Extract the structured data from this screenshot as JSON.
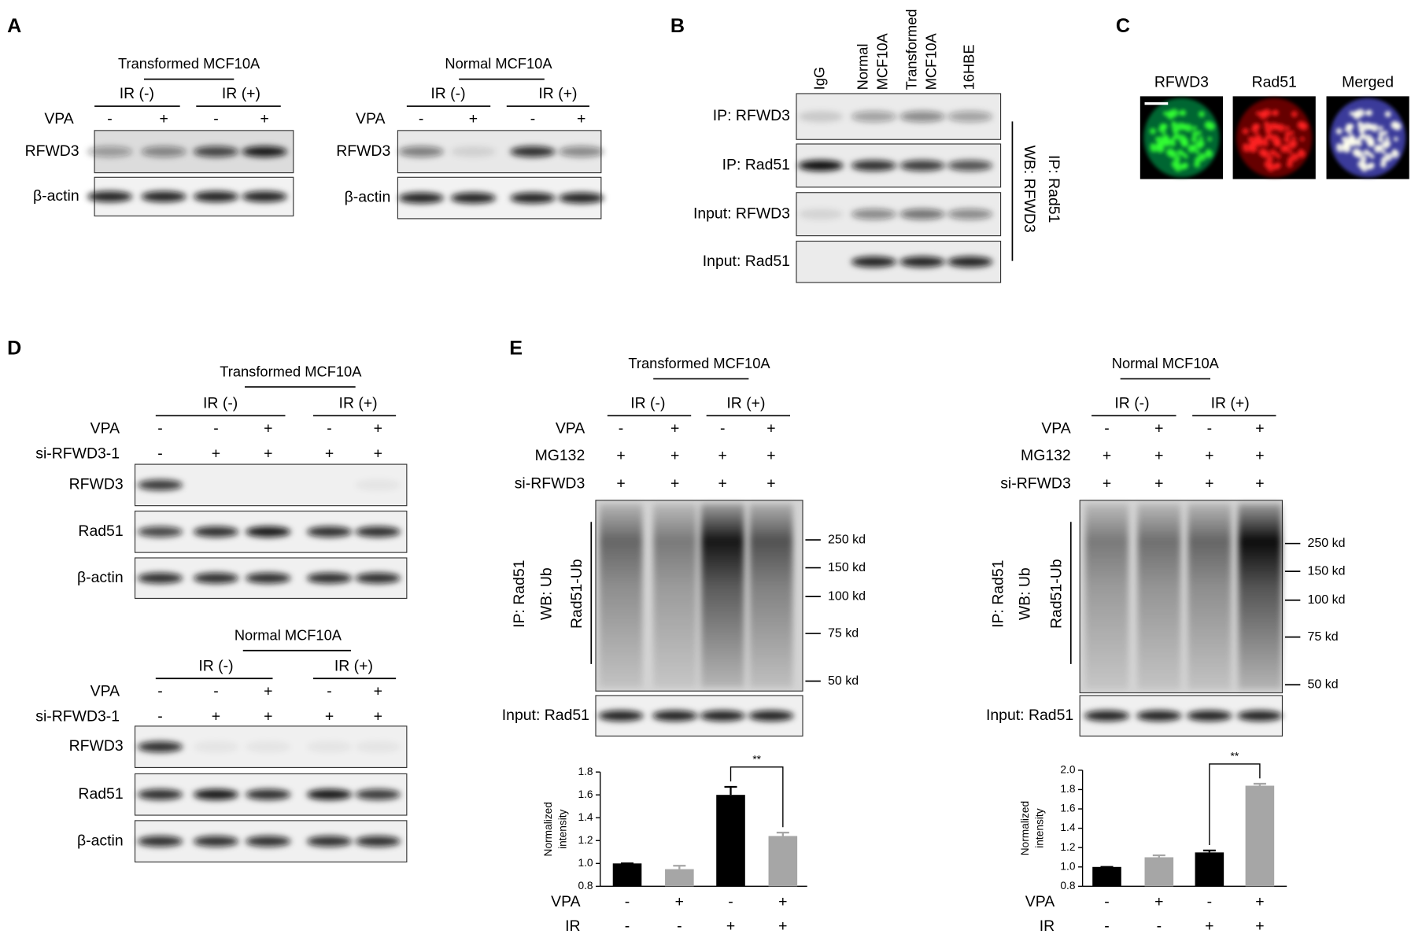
{
  "figure": {
    "A": {
      "label": "A",
      "blots": [
        {
          "title": "Transformed MCF10A",
          "groups": [
            "IR (-)",
            "IR (+)"
          ],
          "conditions": [
            {
              "name": "VPA",
              "signs": [
                "-",
                "+",
                "-",
                "+"
              ]
            }
          ],
          "bands": [
            "RFWD3",
            "β-actin"
          ]
        },
        {
          "title": "Normal MCF10A",
          "groups": [
            "IR (-)",
            "IR (+)"
          ],
          "conditions": [
            {
              "name": "VPA",
              "signs": [
                "-",
                "+",
                "-",
                "+"
              ]
            }
          ],
          "bands": [
            "RFWD3",
            "β-actin"
          ]
        }
      ]
    },
    "B": {
      "label": "B",
      "lanes": [
        [
          "IgG"
        ],
        [
          "Normal",
          "MCF10A"
        ],
        [
          "Transformed",
          "MCF10A"
        ],
        [
          "16HBE"
        ]
      ],
      "bands": [
        "IP: RFWD3",
        "IP: Rad51",
        "Input: RFWD3",
        "Input: Rad51"
      ],
      "side_labels": [
        "IP: Rad51",
        "WB: RFWD3"
      ]
    },
    "C": {
      "label": "C",
      "images": [
        "RFWD3",
        "Rad51",
        "Merged"
      ]
    },
    "D": {
      "label": "D",
      "blots": [
        {
          "title": "Transformed MCF10A",
          "groups": [
            "IR (-)",
            "IR (+)"
          ],
          "conditions": [
            {
              "name": "VPA",
              "signs": [
                "-",
                "-",
                "+",
                "-",
                "+"
              ]
            },
            {
              "name": "si-RFWD3-1",
              "signs": [
                "-",
                "+",
                "+",
                "+",
                "+"
              ]
            }
          ],
          "bands": [
            "RFWD3",
            "Rad51",
            "β-actin"
          ]
        },
        {
          "title": "Normal MCF10A",
          "groups": [
            "IR (-)",
            "IR (+)"
          ],
          "conditions": [
            {
              "name": "VPA",
              "signs": [
                "-",
                "-",
                "+",
                "-",
                "+"
              ]
            },
            {
              "name": "si-RFWD3-1",
              "signs": [
                "-",
                "+",
                "+",
                "+",
                "+"
              ]
            }
          ],
          "bands": [
            "RFWD3",
            "Rad51",
            "β-actin"
          ]
        }
      ]
    },
    "E": {
      "label": "E",
      "blots": [
        {
          "title": "Transformed MCF10A",
          "groups": [
            "IR (-)",
            "IR (+)"
          ],
          "conditions": [
            {
              "name": "VPA",
              "signs": [
                "-",
                "+",
                "-",
                "+"
              ]
            },
            {
              "name": "MG132",
              "signs": [
                "+",
                "+",
                "+",
                "+"
              ]
            },
            {
              "name": "si-RFWD3",
              "signs": [
                "+",
                "+",
                "+",
                "+"
              ]
            }
          ],
          "side_labels": [
            "IP: Rad51",
            "WB: Ub",
            "Rad51-Ub"
          ],
          "markers": [
            "250 kd",
            "150 kd",
            "100 kd",
            "75 kd",
            "50 kd"
          ],
          "bands": [
            "Input: Rad51"
          ]
        },
        {
          "title": "Normal MCF10A",
          "groups": [
            "IR (-)",
            "IR (+)"
          ],
          "conditions": [
            {
              "name": "VPA",
              "signs": [
                "-",
                "+",
                "-",
                "+"
              ]
            },
            {
              "name": "MG132",
              "signs": [
                "+",
                "+",
                "+",
                "+"
              ]
            },
            {
              "name": "si-RFWD3",
              "signs": [
                "+",
                "+",
                "+",
                "+"
              ]
            }
          ],
          "side_labels": [
            "IP: Rad51",
            "WB: Ub",
            "Rad51-Ub"
          ],
          "markers": [
            "250 kd",
            "150 kd",
            "100 kd",
            "75 kd",
            "50 kd"
          ],
          "bands": [
            "Input: Rad51"
          ]
        }
      ]
    }
  },
  "chart_data": [
    {
      "type": "bar",
      "y_label": [
        "Normalized",
        "intensity"
      ],
      "values": [
        1.0,
        0.95,
        1.6,
        1.24
      ],
      "errors": [
        0,
        0.03,
        0.07,
        0.03
      ],
      "colors": [
        "#000000",
        "#a6a6a6",
        "#000000",
        "#a6a6a6"
      ],
      "ylim": [
        0.8,
        1.8
      ],
      "yticks": [
        0.8,
        {
          "value": 1,
          "label": "1.0"
        },
        1.2,
        1.4,
        1.6,
        1.8
      ],
      "annotation": "**",
      "conditions": [
        {
          "name": "VPA",
          "signs": [
            "-",
            "+",
            "-",
            "+"
          ]
        },
        {
          "name": "IR",
          "signs": [
            "-",
            "-",
            "+",
            "+"
          ]
        }
      ]
    },
    {
      "type": "bar",
      "y_label": [
        "Normalized",
        "intensity"
      ],
      "values": [
        1.0,
        1.1,
        1.15,
        1.84
      ],
      "errors": [
        0,
        0.02,
        0.02,
        0.02
      ],
      "colors": [
        "#000000",
        "#a6a6a6",
        "#000000",
        "#a6a6a6"
      ],
      "ylim": [
        0.8,
        2.0
      ],
      "yticks": [
        0.8,
        {
          "value": 1,
          "label": "1.0"
        },
        1.2,
        1.4,
        1.6,
        1.8,
        {
          "value": 2,
          "label": "2.0"
        }
      ],
      "annotation": "**",
      "conditions": [
        {
          "name": "VPA",
          "signs": [
            "-",
            "+",
            "-",
            "+"
          ]
        },
        {
          "name": "IR",
          "signs": [
            "-",
            "-",
            "+",
            "+"
          ]
        }
      ]
    }
  ]
}
